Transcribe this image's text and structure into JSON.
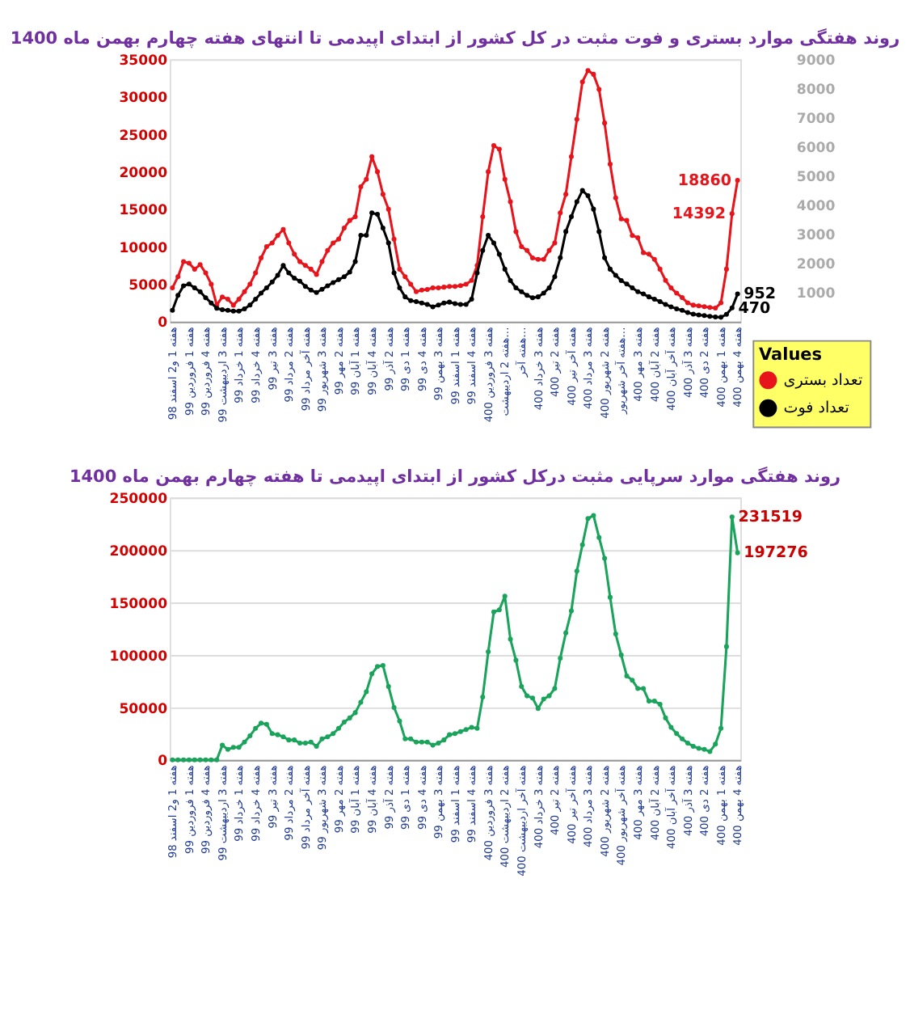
{
  "chart_data": [
    {
      "type": "line",
      "title": "روند هفتگی موارد بستری و فوت مثبت در کل کشور از ابتدای اپیدمی تا انتهای هفته چهارم بهمن ماه 1400",
      "categories": [
        "هفته 1 و2 اسفند 98",
        null,
        null,
        "هفته 1 فروردین 99",
        null,
        null,
        "هفته 4 فروردین 99",
        null,
        null,
        "هفته 3 اردیبهشت 99",
        null,
        null,
        "هفته 1 خرداد 99",
        null,
        null,
        "هفته 4 خرداد 99",
        null,
        null,
        "هفته 3 تیر 99",
        null,
        null,
        "هفته 2 مرداد 99",
        null,
        null,
        "هفته آخر مرداد 99",
        null,
        null,
        "هفته 3 شهریور 99",
        null,
        null,
        "هفته 2 مهر 99",
        null,
        null,
        "هفته 1 آبان 99",
        null,
        null,
        "هفته 4 آبان 99",
        null,
        null,
        "هفته 2 آذر 99",
        null,
        null,
        "هفته 1 دی 99",
        null,
        null,
        "هفته 4 دی 99",
        null,
        null,
        "هفته 3 بهمن 99",
        null,
        null,
        "هفته 1 اسفند 99",
        null,
        null,
        "هفته 4 اسفند 99",
        null,
        null,
        "هفته 3 فروردین 400",
        null,
        null,
        "هفته 2 اردیبهشت…",
        null,
        null,
        "هفته آخر…",
        null,
        null,
        "هفته 3 خرداد 400",
        null,
        null,
        "هفته 2 تیر 400",
        null,
        null,
        "هفته آخر تیر 400",
        null,
        null,
        "هفته 3 مرداد 400",
        null,
        null,
        "هفته 2 شهریور 400",
        null,
        null,
        "هفته آخر شهریور…",
        null,
        null,
        "هفته 3 مهر 400",
        null,
        null,
        "هفته 2 آبان 400",
        null,
        null,
        "هفته آخر آبان 400",
        null,
        null,
        "هفته 3 آذر 400",
        null,
        null,
        "هفته 2 دی 400",
        null,
        null,
        "هفته 1 بهمن 400",
        null,
        null,
        "هفته 4 بهمن 400"
      ],
      "series": [
        {
          "name": "تعداد بستری",
          "color": "#e8141b",
          "values": [
            4500,
            6000,
            8000,
            7800,
            7000,
            7600,
            6500,
            5000,
            2200,
            3300,
            3000,
            2200,
            3000,
            4000,
            5000,
            6500,
            8500,
            10000,
            10500,
            11500,
            12300,
            10500,
            9000,
            8000,
            7500,
            7000,
            6300,
            8000,
            9500,
            10500,
            11000,
            12500,
            13500,
            14000,
            18000,
            19000,
            22000,
            20000,
            17000,
            15000,
            11000,
            7000,
            6000,
            5000,
            4000,
            4200,
            4300,
            4500,
            4500,
            4600,
            4700,
            4700,
            4800,
            5000,
            5500,
            7500,
            14000,
            20000,
            23500,
            23000,
            19000,
            16000,
            12000,
            10000,
            9500,
            8500,
            8300,
            8300,
            9500,
            10500,
            14500,
            17000,
            22000,
            27000,
            32000,
            33500,
            33000,
            31000,
            26500,
            21000,
            16500,
            13700,
            13500,
            11500,
            11200,
            9200,
            9000,
            8300,
            7000,
            5500,
            4500,
            3800,
            3200,
            2500,
            2200,
            2100,
            2000,
            1900,
            1800,
            2500,
            7000,
            14392,
            18860
          ],
          "value_labels": [
            null,
            null,
            null,
            null,
            null,
            null,
            null,
            null,
            null,
            null,
            null,
            null,
            null,
            null,
            null,
            null,
            null,
            null,
            null,
            null,
            null,
            null,
            null,
            null,
            null,
            null,
            null,
            null,
            null,
            null,
            null,
            null,
            null,
            null,
            null,
            null,
            null,
            null,
            null,
            null,
            null,
            null,
            null,
            null,
            null,
            null,
            null,
            null,
            null,
            null,
            null,
            null,
            null,
            null,
            null,
            null,
            null,
            null,
            null,
            null,
            null,
            null,
            null,
            null,
            null,
            null,
            null,
            null,
            null,
            null,
            null,
            null,
            null,
            null,
            null,
            null,
            null,
            null,
            null,
            null,
            null,
            null,
            null,
            null,
            null,
            null,
            null,
            null,
            null,
            null,
            null,
            null,
            null,
            null,
            null,
            null,
            null,
            null,
            null,
            null,
            null,
            "14392",
            "18860"
          ]
        },
        {
          "name": "تعداد فوت",
          "color": "#000000",
          "axis": "y2",
          "values": [
            390,
            900,
            1230,
            1290,
            1160,
            1030,
            820,
            640,
            460,
            410,
            390,
            360,
            360,
            440,
            570,
            770,
            980,
            1160,
            1360,
            1590,
            1930,
            1670,
            1490,
            1390,
            1210,
            1080,
            1000,
            1110,
            1230,
            1340,
            1440,
            1540,
            1700,
            2060,
            2960,
            2960,
            3730,
            3680,
            3210,
            2700,
            1670,
            1160,
            850,
            720,
            690,
            640,
            590,
            510,
            570,
            640,
            670,
            620,
            590,
            590,
            770,
            1670,
            2440,
            2960,
            2700,
            2310,
            1800,
            1410,
            1160,
            1030,
            900,
            820,
            850,
            980,
            1160,
            1540,
            2190,
            3090,
            3600,
            4110,
            4500,
            4320,
            3860,
            3090,
            2190,
            1800,
            1590,
            1410,
            1290,
            1160,
            1030,
            950,
            850,
            770,
            690,
            590,
            510,
            440,
            390,
            310,
            260,
            230,
            210,
            180,
            160,
            150,
            250,
            470,
            952
          ],
          "value_labels": [
            null,
            null,
            null,
            null,
            null,
            null,
            null,
            null,
            null,
            null,
            null,
            null,
            null,
            null,
            null,
            null,
            null,
            null,
            null,
            null,
            null,
            null,
            null,
            null,
            null,
            null,
            null,
            null,
            null,
            null,
            null,
            null,
            null,
            null,
            null,
            null,
            null,
            null,
            null,
            null,
            null,
            null,
            null,
            null,
            null,
            null,
            null,
            null,
            null,
            null,
            null,
            null,
            null,
            null,
            null,
            null,
            null,
            null,
            null,
            null,
            null,
            null,
            null,
            null,
            null,
            null,
            null,
            null,
            null,
            null,
            null,
            null,
            null,
            null,
            null,
            null,
            null,
            null,
            null,
            null,
            null,
            null,
            null,
            null,
            null,
            null,
            null,
            null,
            null,
            null,
            null,
            null,
            null,
            null,
            null,
            null,
            null,
            null,
            null,
            null,
            null,
            "470",
            "952"
          ]
        }
      ],
      "ylim": [
        0,
        35000
      ],
      "yticks": [
        0,
        5000,
        10000,
        15000,
        20000,
        25000,
        30000,
        35000
      ],
      "y2lim": [
        0,
        9000
      ],
      "y2ticks": [
        1000,
        2000,
        3000,
        4000,
        5000,
        6000,
        7000,
        8000,
        9000
      ],
      "legend": "bottom right",
      "legend_title": "Values",
      "marker": "circle",
      "line_style": "solid",
      "grid": false
    },
    {
      "type": "line",
      "title": "روند هفتگی موارد سرپایی مثبت درکل کشور از ابتدای اپیدمی تا هفته چهارم بهمن ماه 1400",
      "categories": [
        "هفته 1 و2 اسفند 98",
        null,
        null,
        "هفته 1 فروردین 99",
        null,
        null,
        "هفته 4 فروردین 99",
        null,
        null,
        "هفته 3 اردیبهشت 99",
        null,
        null,
        "هفته 1 خرداد 99",
        null,
        null,
        "هفته 4 خرداد 99",
        null,
        null,
        "هفته 3 تیر 99",
        null,
        null,
        "هفته 2 مرداد 99",
        null,
        null,
        "هفته آخر مرداد 99",
        null,
        null,
        "هفته 3 شهریور 99",
        null,
        null,
        "هفته 2 مهر 99",
        null,
        null,
        "هفته 1 آبان 99",
        null,
        null,
        "هفته 4 آبان 99",
        null,
        null,
        "هفته 2 آذر 99",
        null,
        null,
        "هفته 1 دی 99",
        null,
        null,
        "هفته 4 دی 99",
        null,
        null,
        "هفته 3 بهمن 99",
        null,
        null,
        "هفته 1 اسفند 99",
        null,
        null,
        "هفته 4 اسفند 99",
        null,
        null,
        "هفته 3 فروردین 400",
        null,
        null,
        "هفته 2 اردیبهشت 400",
        null,
        null,
        "هفته آخر اردیبهشت 400",
        null,
        null,
        "هفته 3 خرداد 400",
        null,
        null,
        "هفته 2 تیر 400",
        null,
        null,
        "هفته آخر تیر 400",
        null,
        null,
        "هفته 3 مرداد 400",
        null,
        null,
        "هفته 2 شهریور 400",
        null,
        null,
        "هفته آخر شهریور 400",
        null,
        null,
        "هفته 3 مهر 400",
        null,
        null,
        "هفته 2 آبان 400",
        null,
        null,
        "هفته آخر آبان 400",
        null,
        null,
        "هفته 3 آذر 400",
        null,
        null,
        "هفته 2 دی 400",
        null,
        null,
        "هفته 1 بهمن 400",
        null,
        null,
        "هفته 4 بهمن 400"
      ],
      "series": [
        {
          "color": "#1aa35a",
          "values": [
            0,
            0,
            0,
            0,
            0,
            0,
            0,
            0,
            0,
            14000,
            10000,
            12000,
            12000,
            17000,
            23000,
            30000,
            35000,
            34000,
            25000,
            24000,
            22000,
            19000,
            19000,
            16000,
            16000,
            17000,
            13000,
            20000,
            22000,
            25000,
            30000,
            36000,
            40000,
            45000,
            55000,
            65000,
            82000,
            89000,
            90000,
            70000,
            50000,
            37000,
            20000,
            20000,
            17000,
            17000,
            17000,
            14000,
            16000,
            19000,
            24000,
            25000,
            27000,
            29000,
            31000,
            30000,
            60000,
            103000,
            141000,
            143000,
            156000,
            115000,
            95000,
            70000,
            61000,
            59000,
            49000,
            58000,
            61000,
            68000,
            97000,
            121000,
            142000,
            180000,
            205000,
            230000,
            233000,
            212000,
            192000,
            155000,
            120000,
            100000,
            80000,
            76000,
            68000,
            68000,
            56000,
            56000,
            53000,
            40000,
            31000,
            25000,
            20000,
            16000,
            13000,
            11000,
            10000,
            8000,
            15000,
            30000,
            108000,
            231519,
            197276
          ],
          "value_labels": [
            null,
            null,
            null,
            null,
            null,
            null,
            null,
            null,
            null,
            null,
            null,
            null,
            null,
            null,
            null,
            null,
            null,
            null,
            null,
            null,
            null,
            null,
            null,
            null,
            null,
            null,
            null,
            null,
            null,
            null,
            null,
            null,
            null,
            null,
            null,
            null,
            null,
            null,
            null,
            null,
            null,
            null,
            null,
            null,
            null,
            null,
            null,
            null,
            null,
            null,
            null,
            null,
            null,
            null,
            null,
            null,
            null,
            null,
            null,
            null,
            null,
            null,
            null,
            null,
            null,
            null,
            null,
            null,
            null,
            null,
            null,
            null,
            null,
            null,
            null,
            null,
            null,
            null,
            null,
            null,
            null,
            null,
            null,
            null,
            null,
            null,
            null,
            null,
            null,
            null,
            null,
            null,
            null,
            null,
            null,
            null,
            null,
            null,
            null,
            null,
            null,
            "231519",
            "197276"
          ]
        }
      ],
      "ylim": [
        0,
        250000
      ],
      "yticks": [
        0,
        50000,
        100000,
        150000,
        200000,
        250000
      ],
      "marker": "circle",
      "line_style": "solid",
      "grid": "y",
      "legend": false
    }
  ]
}
